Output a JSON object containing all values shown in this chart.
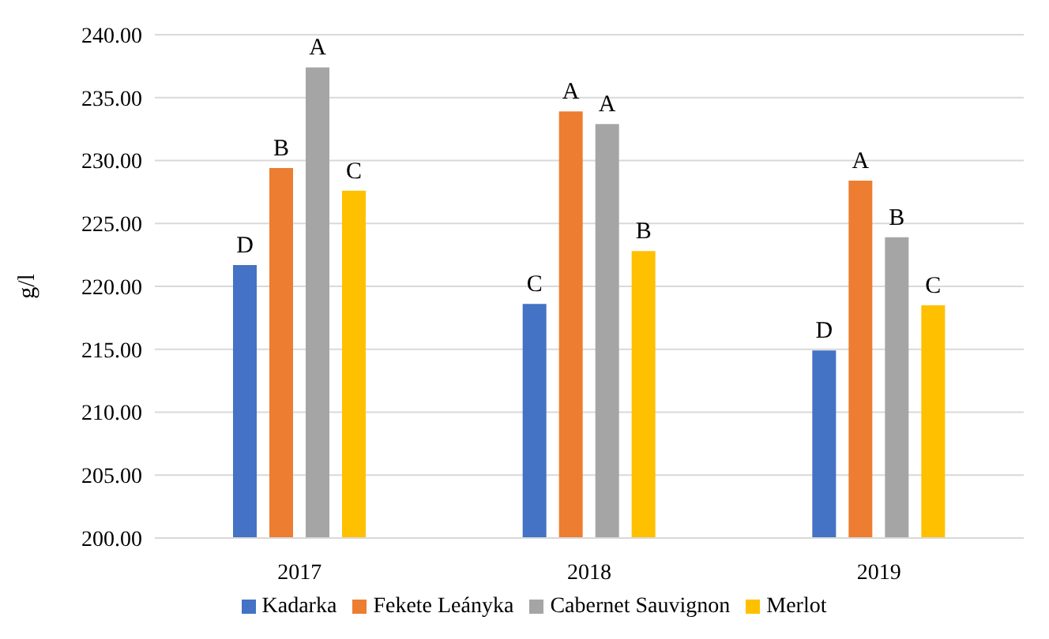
{
  "chart_data": {
    "type": "bar",
    "ylabel": "g/l",
    "categories": [
      "2017",
      "2018",
      "2019"
    ],
    "series": [
      {
        "name": "Kadarka",
        "color": "#4472c4",
        "values": [
          221.7,
          218.6,
          214.9
        ],
        "value_labels": [
          "D",
          "C",
          "D"
        ]
      },
      {
        "name": "Fekete Leányka",
        "color": "#ed7d31",
        "values": [
          229.4,
          233.9,
          228.4
        ],
        "value_labels": [
          "B",
          "A",
          "A"
        ]
      },
      {
        "name": "Cabernet Sauvignon",
        "color": "#a5a5a5",
        "values": [
          237.4,
          232.9,
          223.9
        ],
        "value_labels": [
          "A",
          "A",
          "B"
        ]
      },
      {
        "name": "Merlot",
        "color": "#ffc000",
        "values": [
          227.6,
          222.8,
          218.5
        ],
        "value_labels": [
          "C",
          "B",
          "C"
        ]
      }
    ],
    "ylim": [
      200,
      240
    ],
    "yticks": [
      {
        "value": 200,
        "label": "200.00"
      },
      {
        "value": 205,
        "label": "205.00"
      },
      {
        "value": 210,
        "label": "210.00"
      },
      {
        "value": 215,
        "label": "215.00"
      },
      {
        "value": 220,
        "label": "220.00"
      },
      {
        "value": 225,
        "label": "225.00"
      },
      {
        "value": 230,
        "label": "230.00"
      },
      {
        "value": 235,
        "label": "235.00"
      },
      {
        "value": 240,
        "label": "240.00"
      }
    ],
    "grid": "y",
    "legend": "bottom"
  }
}
